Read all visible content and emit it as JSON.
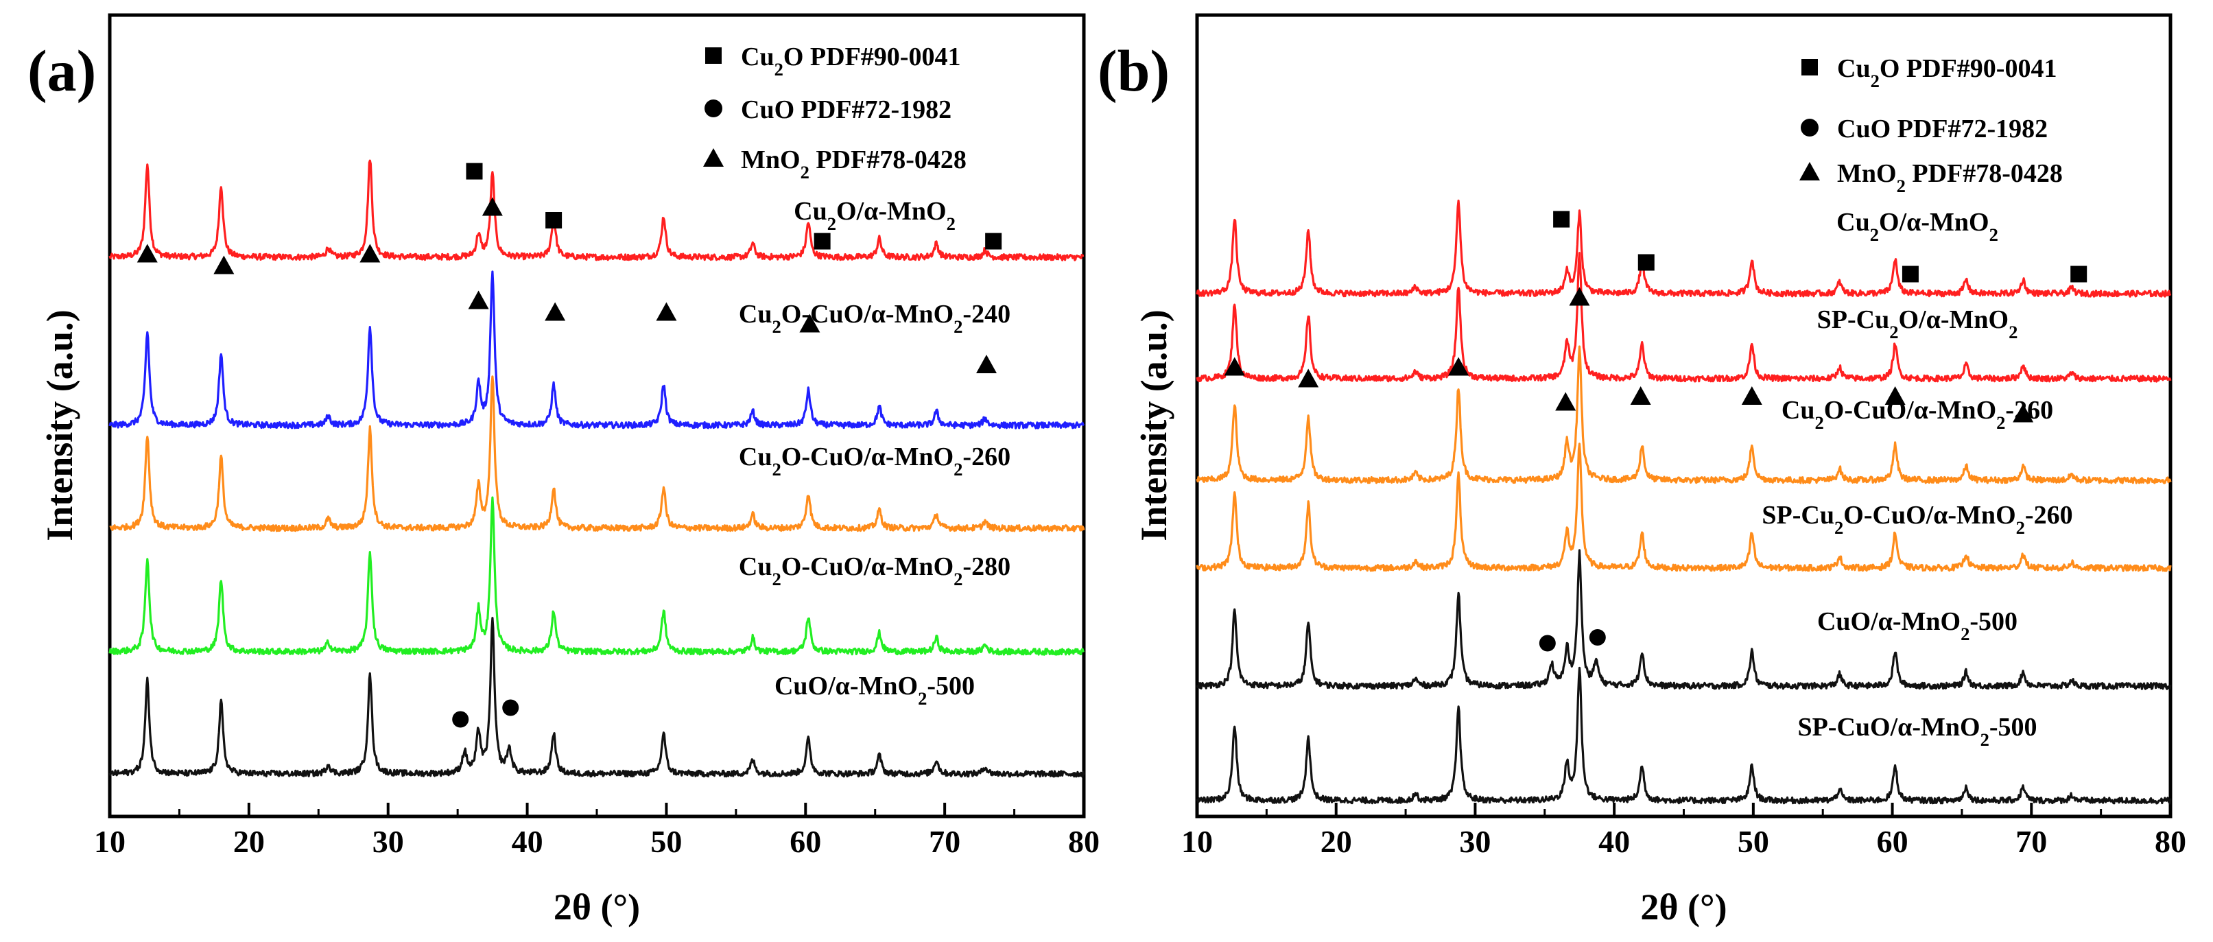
{
  "chart_data": [
    {
      "panel": "(a)",
      "type": "line",
      "xlabel": "2θ (°)",
      "ylabel": "Intensity (a.u.)",
      "xlim": [
        10,
        80
      ],
      "xticks": [
        "10",
        "20",
        "30",
        "40",
        "50",
        "60",
        "70",
        "80"
      ],
      "legend": [
        {
          "marker": "square",
          "label": "Cu",
          "sub": "2",
          "rest": "O PDF#90-0041"
        },
        {
          "marker": "circle",
          "label": "CuO  PDF#72-1982",
          "sub": "",
          "rest": ""
        },
        {
          "marker": "triangle",
          "label": "MnO",
          "sub": "2",
          "rest": " PDF#78-0428"
        }
      ],
      "series": [
        {
          "name": "Cu2O/α-MnO2",
          "label_parts": [
            "Cu",
            "2",
            "O/α-MnO",
            "2",
            ""
          ],
          "color": "#ff1f1f",
          "offset": 4,
          "scale": 1.0,
          "cuo": false,
          "rel_peak_scale": 0.55
        },
        {
          "name": "Cu2O-CuO/α-MnO2-240",
          "label_parts": [
            "Cu",
            "2",
            "O-CuO/α-MnO",
            "2",
            "-240"
          ],
          "color": "#1f1fff",
          "offset": 3,
          "scale": 1.0,
          "cuo": false,
          "rel_peak_scale": 1.0
        },
        {
          "name": "Cu2O-CuO/α-MnO2-260",
          "label_parts": [
            "Cu",
            "2",
            "O-CuO/α-MnO",
            "2",
            "-260"
          ],
          "color": "#ff8c1a",
          "offset": 2,
          "scale": 1.0,
          "cuo": false,
          "rel_peak_scale": 1.0
        },
        {
          "name": "Cu2O-CuO/α-MnO2-280",
          "label_parts": [
            "Cu",
            "2",
            "O-CuO/α-MnO",
            "2",
            "-280"
          ],
          "color": "#22ee22",
          "offset": 1,
          "scale": 1.0,
          "cuo": false,
          "rel_peak_scale": 1.0
        },
        {
          "name": "CuO/α-MnO2-500",
          "label_parts": [
            "CuO/α-MnO",
            "2",
            "-500",
            "",
            ""
          ],
          "color": "#111111",
          "offset": 0,
          "scale": 1.0,
          "cuo": true,
          "rel_peak_scale": 1.0
        }
      ],
      "peaks": [
        {
          "pos": 12.7,
          "h": 0.8
        },
        {
          "pos": 18.0,
          "h": 0.62
        },
        {
          "pos": 25.7,
          "h": 0.08
        },
        {
          "pos": 28.7,
          "h": 0.85
        },
        {
          "pos": 36.5,
          "h": 0.35
        },
        {
          "pos": 37.5,
          "h": 1.3
        },
        {
          "pos": 41.9,
          "h": 0.35
        },
        {
          "pos": 49.8,
          "h": 0.35
        },
        {
          "pos": 56.2,
          "h": 0.12
        },
        {
          "pos": 60.2,
          "h": 0.3
        },
        {
          "pos": 65.3,
          "h": 0.16
        },
        {
          "pos": 69.4,
          "h": 0.12
        },
        {
          "pos": 72.9,
          "h": 0.06
        }
      ],
      "markers": [
        {
          "type": "square",
          "pos": 36.2,
          "row": 0,
          "h": 0.62
        },
        {
          "type": "square",
          "pos": 41.9,
          "row": 0,
          "h": 0.2
        },
        {
          "type": "square",
          "pos": 61.2,
          "row": 0,
          "h": 0.02
        },
        {
          "type": "square",
          "pos": 73.5,
          "row": 0,
          "h": 0.02
        },
        {
          "type": "triangle",
          "pos": 12.7,
          "row": 1,
          "h": 1.35
        },
        {
          "type": "triangle",
          "pos": 18.2,
          "row": 1,
          "h": 1.25
        },
        {
          "type": "triangle",
          "pos": 28.7,
          "row": 1,
          "h": 1.35
        },
        {
          "type": "triangle",
          "pos": 36.5,
          "row": 1,
          "h": 0.95
        },
        {
          "type": "triangle",
          "pos": 37.5,
          "row": 1,
          "h": 1.75
        },
        {
          "type": "triangle",
          "pos": 42.0,
          "row": 1,
          "h": 0.85
        },
        {
          "type": "triangle",
          "pos": 50.0,
          "row": 1,
          "h": 0.85
        },
        {
          "type": "triangle",
          "pos": 60.3,
          "row": 1,
          "h": 0.75
        },
        {
          "type": "triangle",
          "pos": 73.0,
          "row": 1,
          "h": 0.4
        },
        {
          "type": "circle",
          "pos": 35.2,
          "row": 4,
          "h": 0.35
        },
        {
          "type": "circle",
          "pos": 38.8,
          "row": 4,
          "h": 0.45
        }
      ]
    },
    {
      "panel": "(b)",
      "type": "line",
      "xlabel": "2θ (°)",
      "ylabel": "Intensity (a.u.)",
      "xlim": [
        10,
        80
      ],
      "xticks": [
        "10",
        "20",
        "30",
        "40",
        "50",
        "60",
        "70",
        "80"
      ],
      "legend": [
        {
          "marker": "square",
          "label": "Cu",
          "sub": "2",
          "rest": "O PDF#90-0041"
        },
        {
          "marker": "circle",
          "label": "CuO  PDF#72-1982",
          "sub": "",
          "rest": ""
        },
        {
          "marker": "triangle",
          "label": "MnO",
          "sub": "2",
          "rest": " PDF#78-0428"
        }
      ],
      "series": [
        {
          "name": "Cu2O/α-MnO2",
          "label_parts": [
            "Cu",
            "2",
            "O/α-MnO",
            "2",
            ""
          ],
          "color": "#ff1f1f",
          "offset": 5,
          "scale": 1.0,
          "cuo": false,
          "rel_peak_scale": 0.55
        },
        {
          "name": "SP-Cu2O/α-MnO2",
          "label_parts": [
            "SP-Cu",
            "2",
            "O/α-MnO",
            "2",
            ""
          ],
          "color": "#ff1f1f",
          "offset": 4,
          "scale": 1.0,
          "cuo": false,
          "rel_peak_scale": 0.85
        },
        {
          "name": "Cu2O-CuO/α-MnO2-260",
          "label_parts": [
            "Cu",
            "2",
            "O-CuO/α-MnO",
            "2",
            "-260"
          ],
          "color": "#ff8c1a",
          "offset": 3,
          "scale": 1.0,
          "cuo": false,
          "rel_peak_scale": 0.9
        },
        {
          "name": "SP-Cu2O-CuO/α-MnO2-260",
          "label_parts": [
            "SP-Cu",
            "2",
            "O-CuO/α-MnO",
            "2",
            "-260"
          ],
          "color": "#ff8c1a",
          "offset": 2,
          "scale": 1.0,
          "cuo": false,
          "rel_peak_scale": 0.85
        },
        {
          "name": "CuO/α-MnO2-500",
          "label_parts": [
            "CuO/α-MnO",
            "2",
            "-500",
            "",
            ""
          ],
          "color": "#111111",
          "offset": 1,
          "scale": 1.0,
          "cuo": true,
          "rel_peak_scale": 0.9
        },
        {
          "name": "SP-CuO/α-MnO2-500",
          "label_parts": [
            "SP-CuO/α-MnO",
            "2",
            "-500",
            "",
            ""
          ],
          "color": "#111111",
          "offset": 0,
          "scale": 1.0,
          "cuo": false,
          "rel_peak_scale": 0.9
        }
      ],
      "peaks": [
        {
          "pos": 12.7,
          "h": 0.65
        },
        {
          "pos": 18.0,
          "h": 0.55
        },
        {
          "pos": 25.7,
          "h": 0.06
        },
        {
          "pos": 28.8,
          "h": 0.8
        },
        {
          "pos": 36.6,
          "h": 0.35
        },
        {
          "pos": 37.5,
          "h": 1.25
        },
        {
          "pos": 42.0,
          "h": 0.3
        },
        {
          "pos": 49.9,
          "h": 0.3
        },
        {
          "pos": 56.2,
          "h": 0.1
        },
        {
          "pos": 60.2,
          "h": 0.3
        },
        {
          "pos": 65.3,
          "h": 0.12
        },
        {
          "pos": 69.4,
          "h": 0.12
        },
        {
          "pos": 72.9,
          "h": 0.05
        }
      ],
      "markers": [
        {
          "type": "square",
          "pos": 36.2,
          "row": 0,
          "h": 0.52
        },
        {
          "type": "square",
          "pos": 42.3,
          "row": 0,
          "h": 0.15
        },
        {
          "type": "square",
          "pos": 61.3,
          "row": 0,
          "h": 0.05
        },
        {
          "type": "square",
          "pos": 73.4,
          "row": 0,
          "h": 0.05
        },
        {
          "type": "triangle",
          "pos": 12.7,
          "row": 2,
          "h": 0.85
        },
        {
          "type": "triangle",
          "pos": 18.0,
          "row": 2,
          "h": 0.75
        },
        {
          "type": "triangle",
          "pos": 28.8,
          "row": 2,
          "h": 0.85
        },
        {
          "type": "triangle",
          "pos": 36.5,
          "row": 2,
          "h": 0.55
        },
        {
          "type": "triangle",
          "pos": 37.5,
          "row": 2,
          "h": 1.45
        },
        {
          "type": "triangle",
          "pos": 41.9,
          "row": 2,
          "h": 0.6
        },
        {
          "type": "triangle",
          "pos": 49.9,
          "row": 2,
          "h": 0.6
        },
        {
          "type": "triangle",
          "pos": 60.2,
          "row": 2,
          "h": 0.6
        },
        {
          "type": "triangle",
          "pos": 69.4,
          "row": 2,
          "h": 0.45
        },
        {
          "type": "circle",
          "pos": 35.2,
          "row": 4,
          "h": 0.25
        },
        {
          "type": "circle",
          "pos": 38.8,
          "row": 4,
          "h": 0.3
        }
      ]
    }
  ]
}
